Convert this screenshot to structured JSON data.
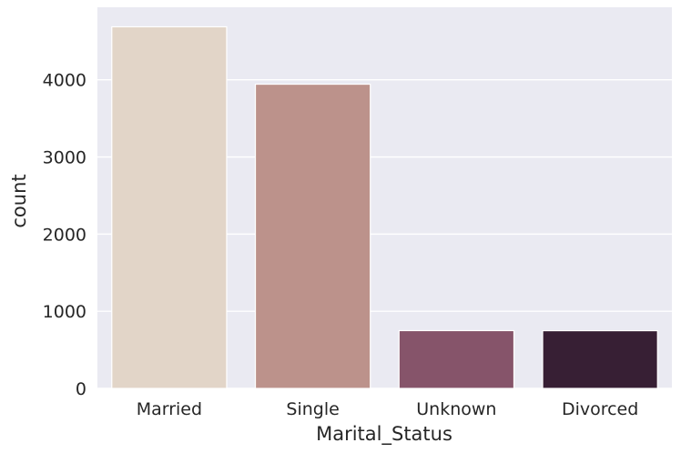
{
  "chart_data": {
    "type": "bar",
    "title": "",
    "xlabel": "Marital_Status",
    "ylabel": "count",
    "categories": [
      "Married",
      "Single",
      "Unknown",
      "Divorced"
    ],
    "values": [
      4687,
      3943,
      749,
      748
    ],
    "ylim": [
      0,
      4940
    ],
    "yticks": [
      0,
      1000,
      2000,
      3000,
      4000
    ],
    "grid": true,
    "colors": [
      "#e2d5c8",
      "#bc928b",
      "#86546a",
      "#371f34"
    ],
    "background": "#eaeaf2"
  }
}
